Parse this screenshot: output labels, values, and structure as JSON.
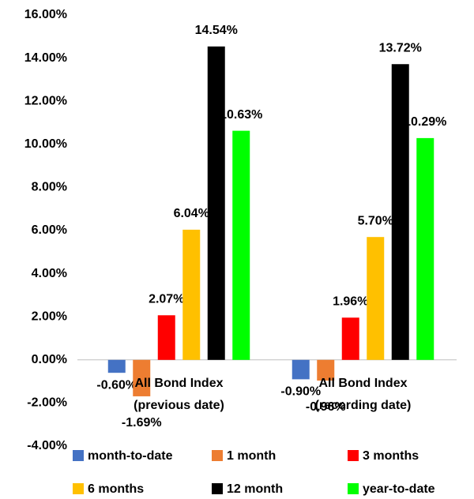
{
  "chart_data": {
    "type": "bar",
    "categories": [
      "All Bond Index (previous date)",
      "All Bond Index (recording date)"
    ],
    "series": [
      {
        "name": "month-to-date",
        "color": "#4472c4",
        "values": [
          -0.6,
          -0.9
        ],
        "value_labels": [
          "-0.60%",
          "-0.90%"
        ]
      },
      {
        "name": "1 month",
        "color": "#ed7d31",
        "values": [
          -1.69,
          -0.96
        ],
        "value_labels": [
          "-1.69%",
          "-0.96%"
        ]
      },
      {
        "name": "3 months",
        "color": "#ff0000",
        "values": [
          2.07,
          1.96
        ],
        "value_labels": [
          "2.07%",
          "1.96%"
        ]
      },
      {
        "name": "6 months",
        "color": "#ffc000",
        "values": [
          6.04,
          5.7
        ],
        "value_labels": [
          "6.04%",
          "5.70%"
        ]
      },
      {
        "name": "12 month",
        "color": "#000000",
        "values": [
          14.54,
          13.72
        ],
        "value_labels": [
          "14.54%",
          "13.72%"
        ]
      },
      {
        "name": "year-to-date",
        "color": "#00ff00",
        "values": [
          10.63,
          10.29
        ],
        "value_labels": [
          "10.63%",
          "10.29%"
        ]
      }
    ],
    "ylim": [
      -4,
      16
    ],
    "yticks": [
      {
        "value": -4,
        "label": "-4.00%"
      },
      {
        "value": -2,
        "label": "-2.00%"
      },
      {
        "value": 0,
        "label": "0.00%"
      },
      {
        "value": 2,
        "label": "2.00%"
      },
      {
        "value": 4,
        "label": "4.00%"
      },
      {
        "value": 6,
        "label": "6.00%"
      },
      {
        "value": 8,
        "label": "8.00%"
      },
      {
        "value": 10,
        "label": "10.00%"
      },
      {
        "value": 12,
        "label": "12.00%"
      },
      {
        "value": 14,
        "label": "14.00%"
      },
      {
        "value": 16,
        "label": "16.00%"
      }
    ],
    "grid": false,
    "legend": "bottom"
  }
}
